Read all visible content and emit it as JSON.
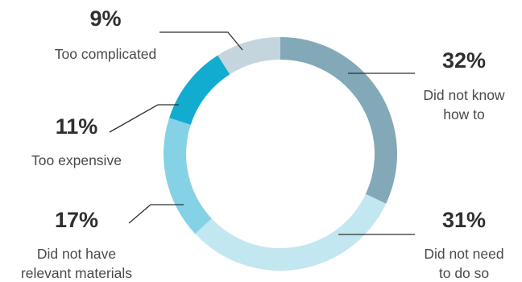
{
  "chart_data": {
    "type": "pie",
    "variant": "donut",
    "start_angle_deg": 0,
    "direction": "clockwise",
    "slices": [
      {
        "value": 32,
        "percent_label": "32%",
        "label_lines": [
          "Did not know",
          "how to"
        ],
        "color": "#83a9b9"
      },
      {
        "value": 31,
        "percent_label": "31%",
        "label_lines": [
          "Did not need",
          "to do so"
        ],
        "color": "#c3e7f1"
      },
      {
        "value": 17,
        "percent_label": "17%",
        "label_lines": [
          "Did not have",
          "relevant materials"
        ],
        "color": "#85d2e6"
      },
      {
        "value": 11,
        "percent_label": "11%",
        "label_lines": [
          "Too expensive"
        ],
        "color": "#13acd1"
      },
      {
        "value": 9,
        "percent_label": "9%",
        "label_lines": [
          "Too complicated"
        ],
        "color": "#c4d5de"
      }
    ]
  }
}
